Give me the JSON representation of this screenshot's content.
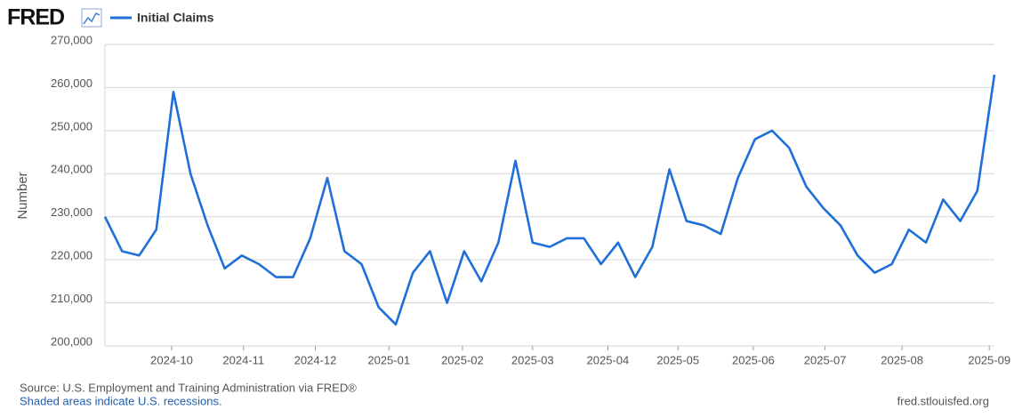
{
  "chart_data": {
    "type": "line",
    "brand": "FRED",
    "y_label": "Number",
    "source": "Source: U.S. Employment and Training Administration via FRED®",
    "note": "Shaded areas indicate U.S. recessions.",
    "site": "fred.stlouisfed.org",
    "grid": true,
    "series": [
      {
        "name": "Initial Claims",
        "color": "#1f6fd8",
        "values": [
          230000,
          222000,
          221000,
          227000,
          259000,
          240000,
          228000,
          218000,
          221000,
          219000,
          216000,
          216000,
          225000,
          239000,
          222000,
          219000,
          209000,
          205000,
          217000,
          222000,
          210000,
          222000,
          215000,
          224000,
          243000,
          224000,
          223000,
          225000,
          225000,
          219000,
          224000,
          216000,
          223000,
          241000,
          229000,
          228000,
          226000,
          239000,
          248000,
          250000,
          246000,
          237000,
          232000,
          228000,
          221000,
          217000,
          219000,
          227000,
          224000,
          234000,
          229000,
          236000,
          263000
        ]
      }
    ],
    "xlim": [
      0,
      52
    ],
    "xticks": [
      {
        "value": 3.9,
        "label": "2024-10"
      },
      {
        "value": 8.1,
        "label": "2024-11"
      },
      {
        "value": 12.3,
        "label": "2024-12"
      },
      {
        "value": 16.6,
        "label": "2025-01"
      },
      {
        "value": 20.9,
        "label": "2025-02"
      },
      {
        "value": 25.0,
        "label": "2025-03"
      },
      {
        "value": 29.4,
        "label": "2025-04"
      },
      {
        "value": 33.5,
        "label": "2025-05"
      },
      {
        "value": 37.9,
        "label": "2025-06"
      },
      {
        "value": 42.1,
        "label": "2025-07"
      },
      {
        "value": 46.6,
        "label": "2025-08"
      },
      {
        "value": 51.7,
        "label": "2025-09"
      }
    ],
    "ylim": [
      200000,
      270000
    ],
    "yticks": [
      {
        "value": 200000,
        "label": "200,000"
      },
      {
        "value": 210000,
        "label": "210,000"
      },
      {
        "value": 220000,
        "label": "220,000"
      },
      {
        "value": 230000,
        "label": "230,000"
      },
      {
        "value": 240000,
        "label": "240,000"
      },
      {
        "value": 250000,
        "label": "250,000"
      },
      {
        "value": 260000,
        "label": "260,000"
      },
      {
        "value": 270000,
        "label": "270,000"
      }
    ]
  }
}
